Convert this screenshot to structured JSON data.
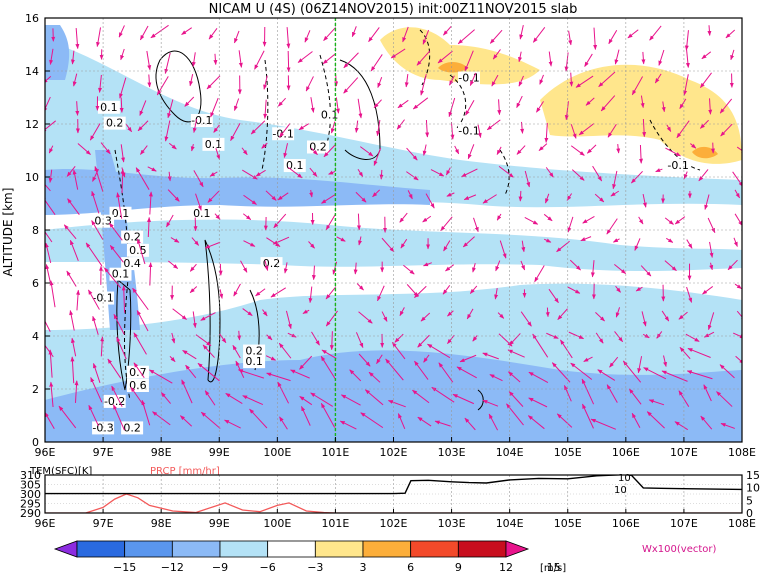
{
  "chart_data": [
    {
      "type": "heatmap",
      "title": "NICAM U (4S) (06Z14NOV2015) init:00Z11NOV2015 slab",
      "ylabel": "ALTITUDE [km]",
      "xlabel": "",
      "xlim": [
        96,
        108
      ],
      "ylim": [
        0,
        16
      ],
      "x_ticks": [
        "96E",
        "97E",
        "98E",
        "99E",
        "100E",
        "101E",
        "102E",
        "103E",
        "104E",
        "105E",
        "106E",
        "107E",
        "108E"
      ],
      "y_ticks": [
        "0",
        "2",
        "4",
        "6",
        "8",
        "10",
        "12",
        "14",
        "16"
      ],
      "grid": true,
      "marker_line_lon": 101,
      "contour_labels": [
        {
          "text": "0.1",
          "x": 97.1,
          "y": 12.5
        },
        {
          "text": "0.2",
          "x": 97.2,
          "y": 11.9
        },
        {
          "text": "-0.1",
          "x": 98.7,
          "y": 12.0
        },
        {
          "text": "0.1",
          "x": 98.9,
          "y": 11.1
        },
        {
          "text": "-0.1",
          "x": 100.1,
          "y": 11.5
        },
        {
          "text": "0.1",
          "x": 100.3,
          "y": 10.3
        },
        {
          "text": "0.1",
          "x": 100.9,
          "y": 12.2
        },
        {
          "text": "0.2",
          "x": 100.7,
          "y": 11.0
        },
        {
          "text": "-0.1",
          "x": 103.3,
          "y": 13.6
        },
        {
          "text": "-0.1",
          "x": 103.3,
          "y": 11.6
        },
        {
          "text": "-0.1",
          "x": 106.9,
          "y": 10.3
        },
        {
          "text": "0.1",
          "x": 97.3,
          "y": 8.5
        },
        {
          "text": "0.3",
          "x": 97.0,
          "y": 8.2
        },
        {
          "text": "0.1",
          "x": 98.7,
          "y": 8.5
        },
        {
          "text": "0.2",
          "x": 97.5,
          "y": 7.6
        },
        {
          "text": "0.5",
          "x": 97.6,
          "y": 7.1
        },
        {
          "text": "0.4",
          "x": 97.5,
          "y": 6.6
        },
        {
          "text": "0.1",
          "x": 97.3,
          "y": 6.2
        },
        {
          "text": "0.2",
          "x": 99.9,
          "y": 6.6
        },
        {
          "text": "-0.1",
          "x": 97.0,
          "y": 5.3
        },
        {
          "text": "0.2",
          "x": 99.6,
          "y": 3.3
        },
        {
          "text": "0.1",
          "x": 99.6,
          "y": 2.9
        },
        {
          "text": "0.7",
          "x": 97.6,
          "y": 2.5
        },
        {
          "text": "0.6",
          "x": 97.6,
          "y": 2.0
        },
        {
          "text": "-0.2",
          "x": 97.2,
          "y": 1.4
        },
        {
          "text": "-0.3",
          "x": 97.0,
          "y": 0.4
        },
        {
          "text": "0.2",
          "x": 97.5,
          "y": 0.4
        }
      ]
    },
    {
      "type": "line",
      "series_labels": [
        "TEM(SFC)[K]",
        "PRCP [mm/hr]"
      ],
      "xlim": [
        96,
        108
      ],
      "y_left_ticks": [
        "310",
        "305",
        "300",
        "295",
        "290"
      ],
      "y_left_range": [
        290,
        310
      ],
      "y_right_ticks": [
        "15",
        "10",
        "5",
        "0"
      ],
      "y_right_range": [
        0,
        15
      ],
      "contour_marks": [
        "10",
        "10"
      ],
      "x_ticks": [
        "96E",
        "97E",
        "98E",
        "99E",
        "100E",
        "101E",
        "102E",
        "103E",
        "104E",
        "105E",
        "106E",
        "107E",
        "108E"
      ],
      "tem": {
        "x": [
          96,
          96.5,
          97,
          97.5,
          98,
          98.5,
          99,
          99.5,
          100,
          100.5,
          101,
          101.5,
          102,
          102.2,
          102.3,
          102.6,
          103,
          103.3,
          103.6,
          104,
          104.5,
          105,
          105.5,
          106,
          106.1,
          106.3,
          106.6,
          107,
          107.5,
          108
        ],
        "y": [
          300.2,
          300.2,
          300.2,
          300.2,
          300.2,
          300.2,
          300.2,
          300.2,
          300.2,
          300.2,
          300.2,
          300.2,
          300.2,
          300.4,
          307.0,
          307.2,
          306.4,
          306.0,
          305.8,
          307.4,
          308.2,
          308.0,
          309.6,
          310.2,
          309.8,
          303.2,
          303.0,
          302.8,
          302.6,
          302.4
        ]
      },
      "prcp": {
        "x": [
          96,
          96.7,
          97,
          97.2,
          97.4,
          97.6,
          97.8,
          98.2,
          98.6,
          98.9,
          99.1,
          99.4,
          99.7,
          100,
          100.2,
          100.5,
          100.8,
          101,
          108
        ],
        "y": [
          0,
          0,
          2.2,
          5.5,
          7.5,
          6.0,
          3.0,
          0.8,
          0.2,
          2.5,
          4.0,
          1.2,
          0.5,
          3.0,
          4.0,
          0.8,
          0.2,
          0,
          0
        ]
      }
    },
    {
      "type": "table",
      "colorbar_labels": [
        "−15",
        "−12",
        "−9",
        "−6",
        "−3",
        "3",
        "6",
        "9",
        "12",
        "15"
      ],
      "colorbar_colors": [
        "#8c2ce0",
        "#2a6ae0",
        "#5a96ee",
        "#8cbaf6",
        "#b4e2f6",
        "#ffffff",
        "#ffe68c",
        "#fcae3a",
        "#f34a2a",
        "#c80e1e",
        "#e8148c"
      ],
      "units": "[m/s]",
      "vector_label": "Wx100(vector)"
    }
  ]
}
